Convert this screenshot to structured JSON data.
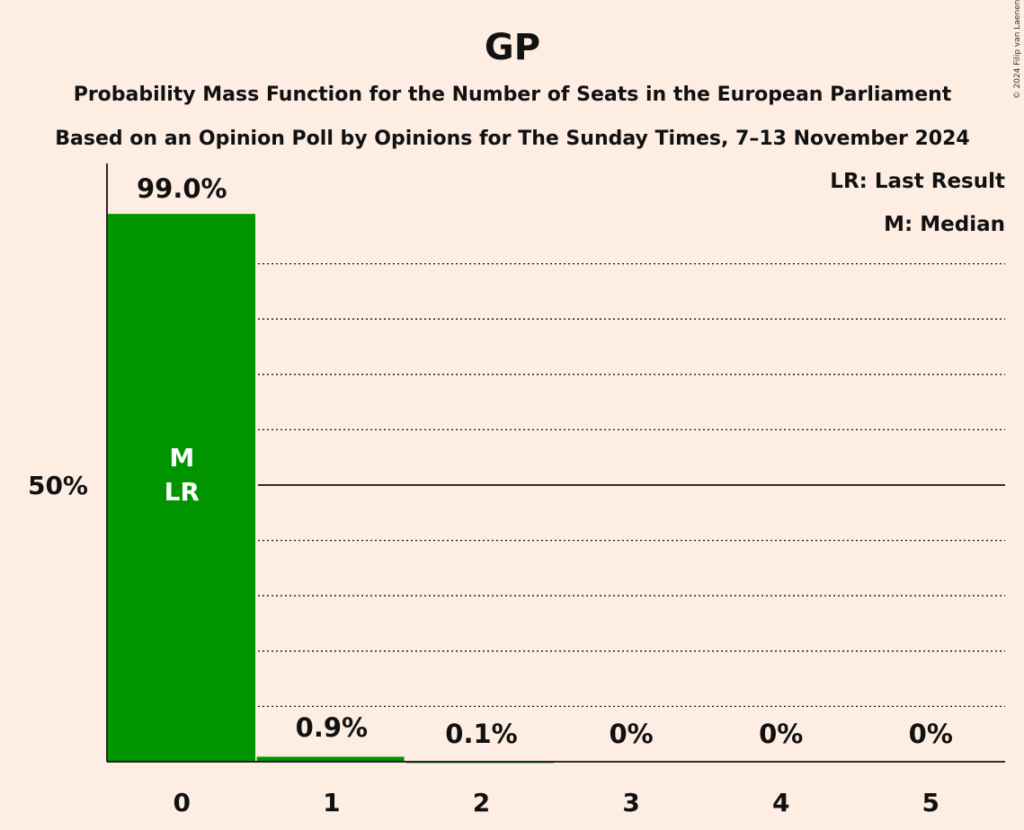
{
  "title": "GP",
  "subtitle_1": "Probability Mass Function for the Number of Seats in the European Parliament",
  "subtitle_2": "Based on an Opinion Poll by Opinions for The Sunday Times, 7–13 November 2024",
  "copyright": "© 2024 Filip van Laenen",
  "legend": {
    "last_result": "LR: Last Result",
    "median": "M: Median"
  },
  "colors": {
    "background": "#FDEDE3",
    "bar": "#009400",
    "text": "#111111"
  },
  "chart_data": {
    "type": "bar",
    "categories": [
      "0",
      "1",
      "2",
      "3",
      "4",
      "5"
    ],
    "values": [
      99.0,
      0.9,
      0.1,
      0,
      0,
      0
    ],
    "value_labels": [
      "99.0%",
      "0.9%",
      "0.1%",
      "0%",
      "0%",
      "0%"
    ],
    "ylim": [
      0,
      100
    ],
    "y_ticks": [
      {
        "value": 50,
        "label": "50%"
      }
    ],
    "gridlines": [
      10,
      20,
      30,
      40,
      60,
      70,
      80,
      90
    ],
    "bar_markers": [
      {
        "category": "0",
        "lines": [
          "M",
          "LR"
        ]
      }
    ],
    "grid": true,
    "legend_position": "top-right"
  }
}
